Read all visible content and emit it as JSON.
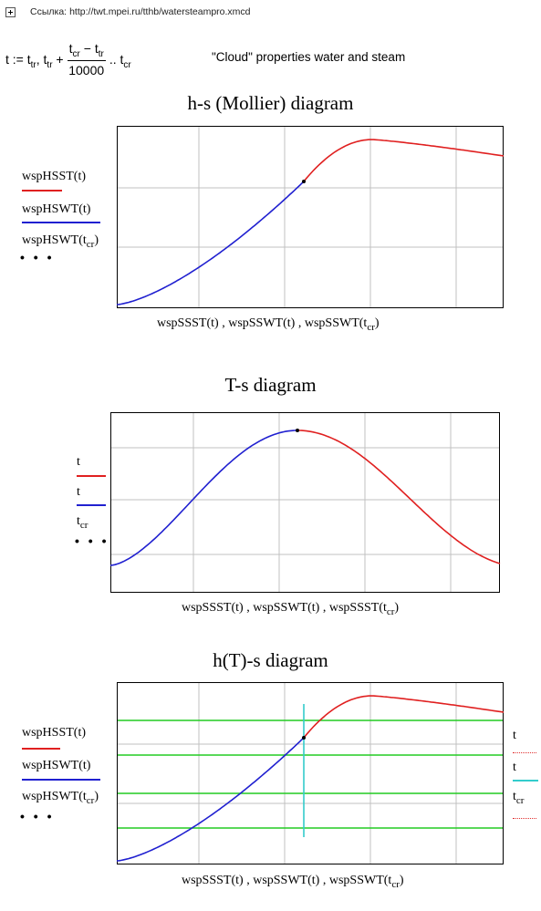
{
  "link": {
    "label": "Ссылка:",
    "url": "http://twt.mpei.ru/tthb/watersteampro.xmcd"
  },
  "formula": {
    "lhs": "t :=",
    "t": "t",
    "tr": "tr",
    "cr": "cr",
    "plus": "+",
    "minus": "−",
    "range_dots": "..",
    "den": "10000"
  },
  "cloud_text": "\"Cloud\" properties water and steam",
  "dots_glyph": "• • •",
  "colors": {
    "steam": "#e02020",
    "water": "#2020d0",
    "isoline": "#22cc22",
    "cursor": "#33cccc",
    "grid": "#c0c0c0"
  },
  "charts": [
    {
      "title": "h-s (Mollier) diagram",
      "legend": [
        {
          "name": "wspHSST",
          "arg": "t",
          "color": "#e02020"
        },
        {
          "name": "wspHSWT",
          "arg": "t",
          "color": "#2020d0"
        },
        {
          "name": "wspHSWT",
          "arg": "t",
          "arg_sub": "cr"
        }
      ],
      "xlabel": {
        "p1": "wspSSST",
        "p2": "wspSSWT",
        "p3": "wspSSWT",
        "arg": "t",
        "arg_sub": "cr"
      }
    },
    {
      "title": "T-s diagram",
      "legend": [
        {
          "name": "t",
          "color": "#e02020"
        },
        {
          "name": "t",
          "color": "#2020d0"
        },
        {
          "name": "t",
          "sub": "cr"
        }
      ],
      "xlabel": {
        "p1": "wspSSST",
        "p2": "wspSSWT",
        "p3": "wspSSST",
        "arg": "t",
        "arg_sub": "cr"
      }
    },
    {
      "title": "h(T)-s diagram",
      "legend": [
        {
          "name": "wspHSST",
          "arg": "t",
          "color": "#e02020"
        },
        {
          "name": "wspHSWT",
          "arg": "t",
          "color": "#2020d0"
        },
        {
          "name": "wspHSWT",
          "arg": "t",
          "arg_sub": "cr"
        }
      ],
      "right_legend": [
        {
          "name": "t",
          "color": "#e02020",
          "style": "dotted"
        },
        {
          "name": "t",
          "color": "#33cccc",
          "style": "solid"
        },
        {
          "name": "t",
          "sub": "cr",
          "color": "#e02020",
          "style": "dotted"
        }
      ],
      "xlabel": {
        "p1": "wspSSST",
        "p2": "wspSSWT",
        "p3": "wspSSWT",
        "arg": "t",
        "arg_sub": "cr"
      }
    }
  ]
}
